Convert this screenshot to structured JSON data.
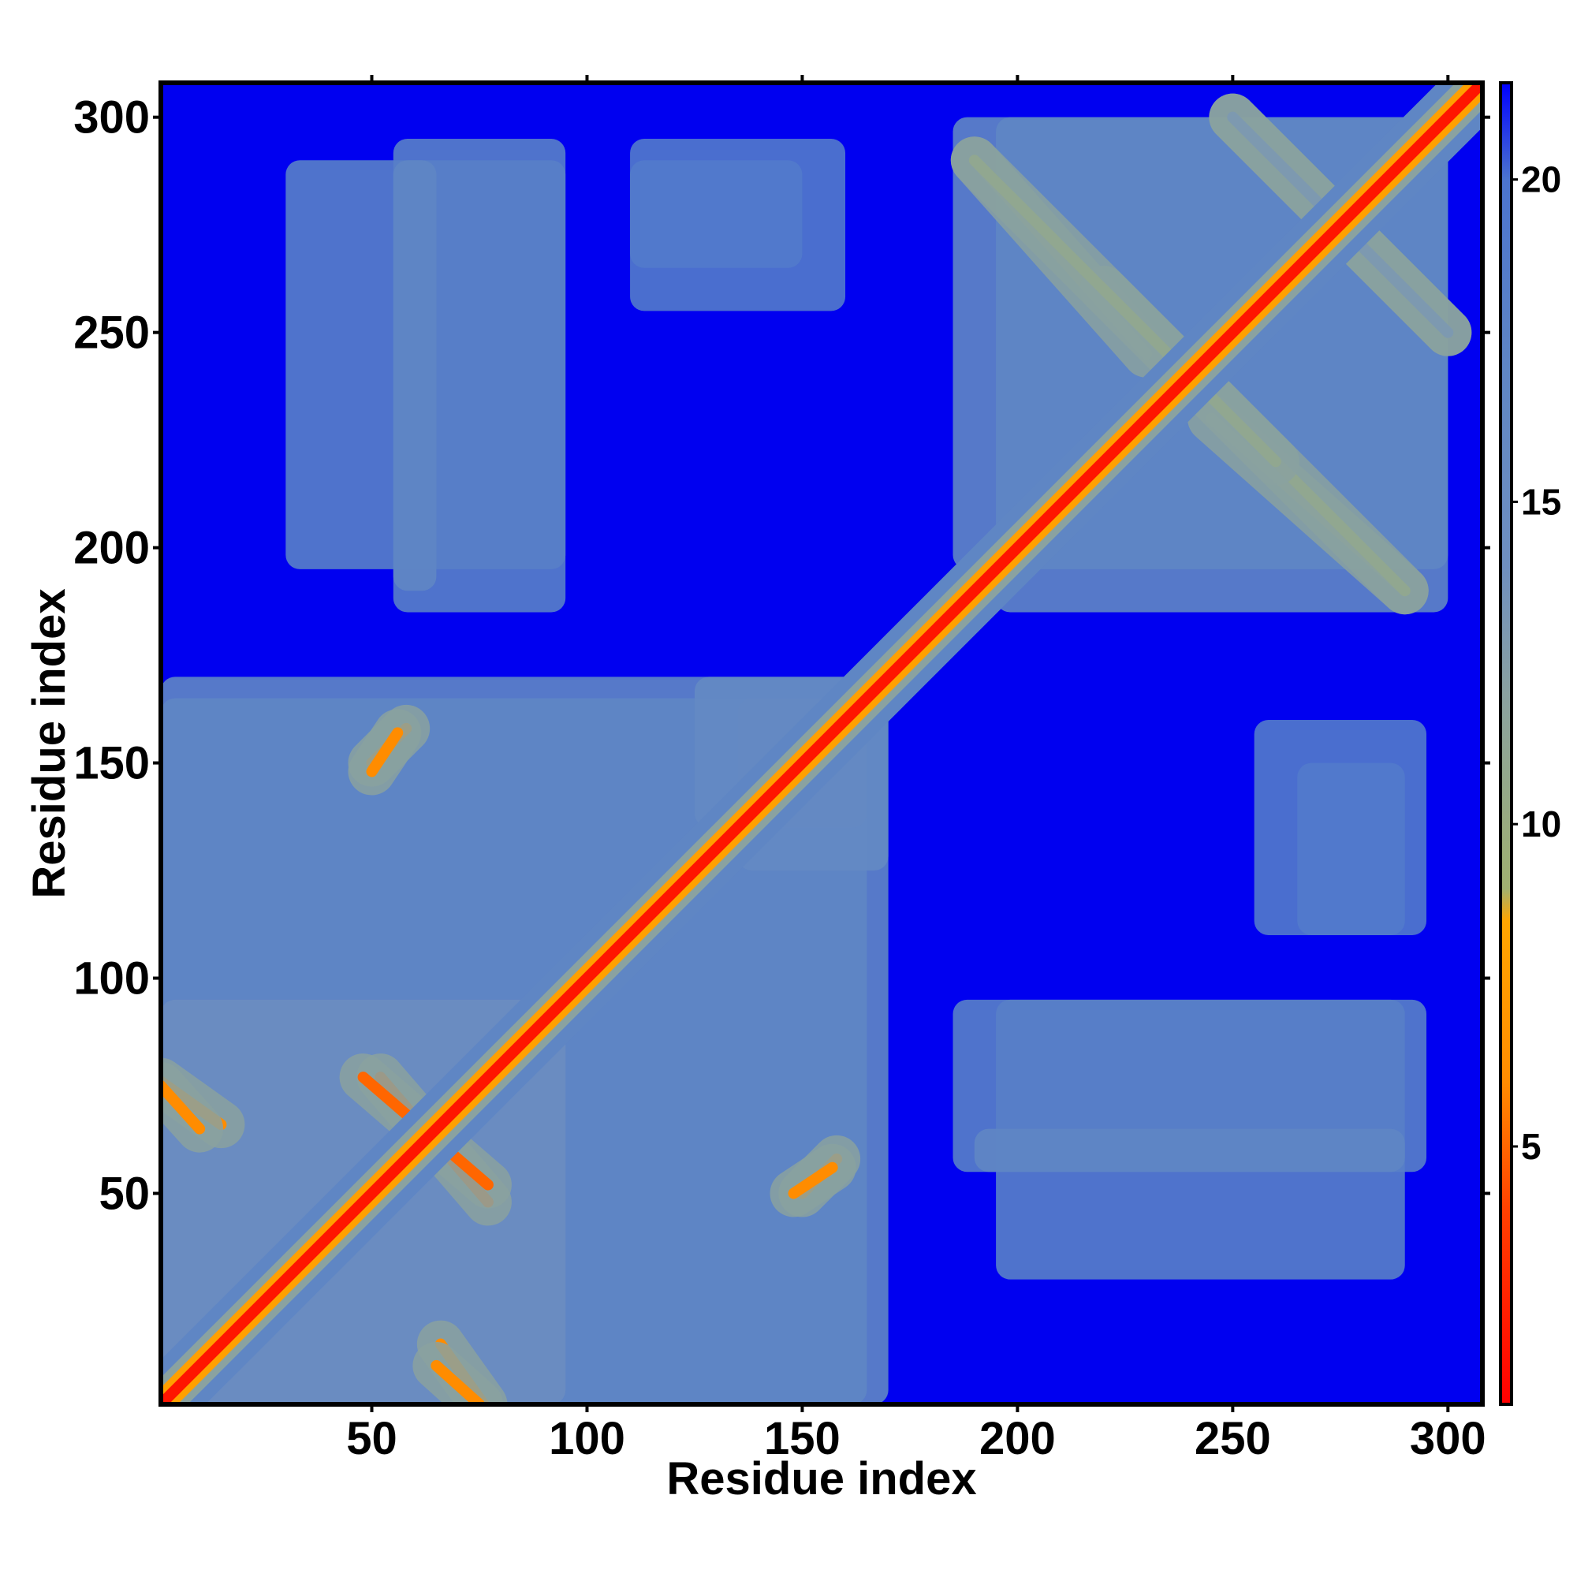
{
  "chart_data": {
    "type": "heatmap",
    "title": "",
    "xlabel": "Residue index",
    "ylabel": "Residue index",
    "xlim": [
      1,
      308
    ],
    "ylim": [
      1,
      308
    ],
    "x_ticks": [
      50,
      100,
      150,
      200,
      250,
      300
    ],
    "y_ticks": [
      50,
      100,
      150,
      200,
      250,
      300
    ],
    "colorbar": {
      "range": [
        1,
        21.5
      ],
      "ticks": [
        5,
        10,
        15,
        20
      ],
      "colors": [
        {
          "value": 1,
          "color": "#ff0000"
        },
        {
          "value": 4,
          "color": "#ff4000"
        },
        {
          "value": 6,
          "color": "#ff8c00"
        },
        {
          "value": 8.5,
          "color": "#ffa500"
        },
        {
          "value": 9,
          "color": "#a0b070"
        },
        {
          "value": 12,
          "color": "#8aa2a0"
        },
        {
          "value": 14,
          "color": "#6f8fc0"
        },
        {
          "value": 17,
          "color": "#5f86c4"
        },
        {
          "value": 20,
          "color": "#4b74cf"
        },
        {
          "value": 21.5,
          "color": "#0000ff"
        }
      ]
    },
    "background_color": "#0000f0",
    "contact_color": "#5b85c5",
    "diagonal": {
      "from": 1,
      "to": 308
    },
    "regions": [
      {
        "x": [
          1,
          170
        ],
        "y": [
          1,
          165
        ],
        "value": 17
      },
      {
        "x": [
          1,
          95
        ],
        "y": [
          1,
          95
        ],
        "value": 15
      },
      {
        "x": [
          135,
          170
        ],
        "y": [
          125,
          165
        ],
        "value": 16
      },
      {
        "x": [
          185,
          300
        ],
        "y": [
          195,
          300
        ],
        "value": 17
      },
      {
        "x": [
          55,
          95
        ],
        "y": [
          185,
          295
        ],
        "value": 18
      },
      {
        "x": [
          110,
          160
        ],
        "y": [
          255,
          295
        ],
        "value": 19
      },
      {
        "x": [
          195,
          290
        ],
        "y": [
          30,
          95
        ],
        "value": 18
      },
      {
        "x": [
          190,
          290
        ],
        "y": [
          55,
          65
        ],
        "value": 17
      },
      {
        "x": [
          265,
          290
        ],
        "y": [
          110,
          150
        ],
        "value": 19
      }
    ],
    "antidiagonals": [
      {
        "x": [
          52,
          77
        ],
        "y": [
          77,
          48
        ],
        "value": 5
      },
      {
        "x": [
          1,
          15
        ],
        "y": [
          76,
          66
        ],
        "value": 6
      },
      {
        "x": [
          65,
          75
        ],
        "y": [
          10,
          1
        ],
        "value": 6
      },
      {
        "x": [
          190,
          230
        ],
        "y": [
          290,
          245
        ],
        "value": 11
      },
      {
        "x": [
          220,
          290
        ],
        "y": [
          260,
          190
        ],
        "value": 11
      },
      {
        "x": [
          250,
          300
        ],
        "y": [
          300,
          250
        ],
        "value": 13
      },
      {
        "x": [
          50,
          58
        ],
        "y": [
          150,
          158
        ],
        "value": 6
      },
      {
        "x": [
          148,
          157
        ],
        "y": [
          50,
          56
        ],
        "value": 6
      }
    ]
  }
}
